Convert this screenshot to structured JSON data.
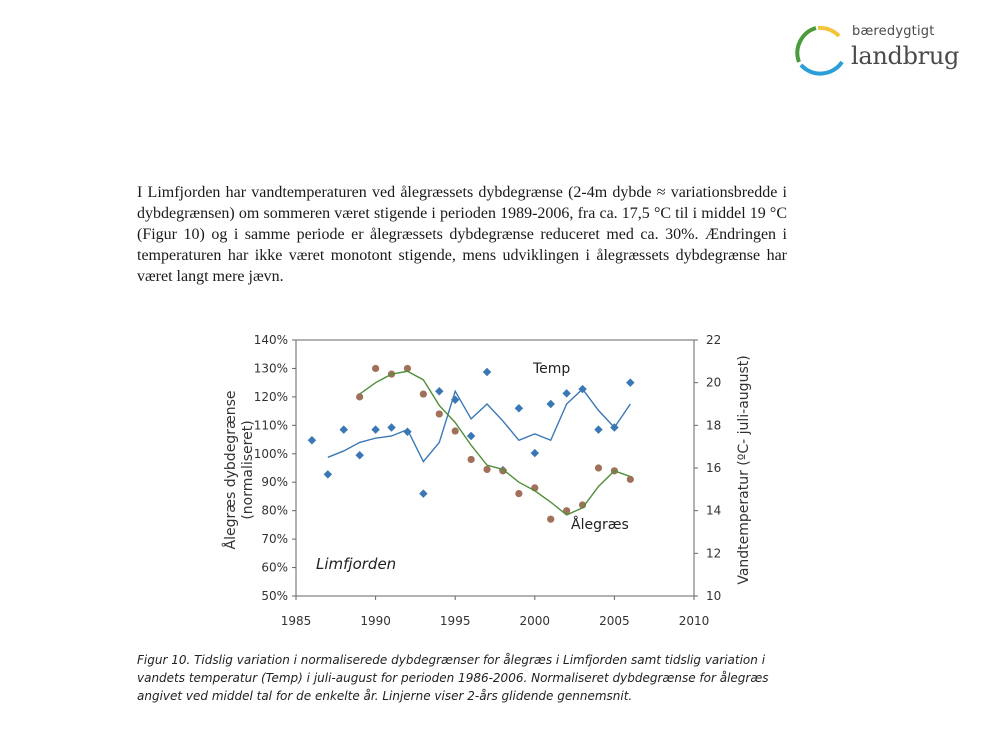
{
  "logo": {
    "line1": "bæredygtigt",
    "line2": "landbrug",
    "colors": [
      "#f2c53d",
      "#2a9fd6",
      "#4a9b3a"
    ]
  },
  "body_text": "I Limfjorden har vandtemperaturen ved ålegræssets dybdegrænse (2-4m dybde ≈ variationsbredde i dybdegrænsen) om sommeren været stigende i perioden 1989-2006, fra ca. 17,5 °C til i middel 19 °C (Figur 10) og i samme periode er ålegræssets dybdegrænse reduceret med ca. 30%. Ændringen i temperaturen har ikke været monotont stigende, mens udviklingen i ålegræssets dybdegrænse har været langt mere jævn.",
  "caption": "Figur 10. Tidslig variation i normaliserede dybdegrænser for ålegræs i Limfjorden samt tidslig variation i vandets temperatur (Temp) i juli-august for perioden 1986-2006. Normaliseret dybdegrænse for ålegræs angivet ved middel tal for de enkelte år. Linjerne viser 2-års glidende gennemsnit.",
  "chart_data": {
    "type": "scatter",
    "xlim": [
      1985,
      2010
    ],
    "x_ticks": [
      "1985",
      "1990",
      "1995",
      "2000",
      "2005",
      "2010"
    ],
    "y_left": {
      "label": "Ålegræs dybdegrænse (normaliseret)",
      "ylim": [
        0.5,
        1.4
      ],
      "ticks": [
        "50%",
        "60%",
        "70%",
        "80%",
        "90%",
        "100%",
        "110%",
        "120%",
        "130%",
        "140%"
      ]
    },
    "y_right": {
      "label": "Vandtemperatur (ºC- juli-august)",
      "ylim": [
        10,
        22
      ],
      "ticks": [
        "10",
        "12",
        "14",
        "16",
        "18",
        "20",
        "22"
      ]
    },
    "annotation": "Limfjorden",
    "grid": false,
    "series": [
      {
        "name": "Temp",
        "axis": "right",
        "color": "#3a78b5",
        "points": [
          [
            1986,
            17.3
          ],
          [
            1987,
            15.7
          ],
          [
            1988,
            17.8
          ],
          [
            1989,
            16.6
          ],
          [
            1990,
            17.8
          ],
          [
            1991,
            17.9
          ],
          [
            1992,
            17.7
          ],
          [
            1993,
            14.8
          ],
          [
            1994,
            19.6
          ],
          [
            1995,
            19.2
          ],
          [
            1996,
            17.5
          ],
          [
            1997,
            20.5
          ],
          [
            1998,
            15.9
          ],
          [
            1999,
            18.8
          ],
          [
            2000,
            16.7
          ],
          [
            2001,
            19.0
          ],
          [
            2002,
            19.5
          ],
          [
            2003,
            19.7
          ],
          [
            2004,
            17.8
          ],
          [
            2005,
            17.9
          ],
          [
            2006,
            20.0
          ]
        ],
        "moving_avg": [
          [
            1987,
            16.5
          ],
          [
            1988,
            16.8
          ],
          [
            1989,
            17.2
          ],
          [
            1990,
            17.4
          ],
          [
            1991,
            17.5
          ],
          [
            1992,
            17.8
          ],
          [
            1993,
            16.3
          ],
          [
            1994,
            17.2
          ],
          [
            1995,
            19.6
          ],
          [
            1996,
            18.3
          ],
          [
            1997,
            19.0
          ],
          [
            1998,
            18.2
          ],
          [
            1999,
            17.3
          ],
          [
            2000,
            17.6
          ],
          [
            2001,
            17.3
          ],
          [
            2002,
            19.0
          ],
          [
            2003,
            19.7
          ],
          [
            2004,
            18.7
          ],
          [
            2005,
            17.9
          ],
          [
            2006,
            19.0
          ]
        ]
      },
      {
        "name": "Ålegræs",
        "axis": "left",
        "color": "#a0705a",
        "points": [
          [
            1989,
            1.2
          ],
          [
            1990,
            1.3
          ],
          [
            1991,
            1.28
          ],
          [
            1992,
            1.3
          ],
          [
            1993,
            1.21
          ],
          [
            1994,
            1.14
          ],
          [
            1995,
            1.08
          ],
          [
            1996,
            0.98
          ],
          [
            1997,
            0.945
          ],
          [
            1998,
            0.94
          ],
          [
            1999,
            0.86
          ],
          [
            2000,
            0.88
          ],
          [
            2001,
            0.77
          ],
          [
            2002,
            0.8
          ],
          [
            2003,
            0.82
          ],
          [
            2004,
            0.95
          ],
          [
            2005,
            0.94
          ],
          [
            2006,
            0.91
          ]
        ],
        "moving_avg": [
          [
            1989,
            1.21
          ],
          [
            1990,
            1.25
          ],
          [
            1991,
            1.28
          ],
          [
            1992,
            1.29
          ],
          [
            1993,
            1.26
          ],
          [
            1994,
            1.17
          ],
          [
            1995,
            1.11
          ],
          [
            1996,
            1.03
          ],
          [
            1997,
            0.96
          ],
          [
            1998,
            0.945
          ],
          [
            1999,
            0.9
          ],
          [
            2000,
            0.87
          ],
          [
            2001,
            0.83
          ],
          [
            2002,
            0.785
          ],
          [
            2003,
            0.81
          ],
          [
            2004,
            0.885
          ],
          [
            2005,
            0.94
          ],
          [
            2006,
            0.92
          ]
        ],
        "line_color": "#4f8f3a"
      }
    ]
  }
}
